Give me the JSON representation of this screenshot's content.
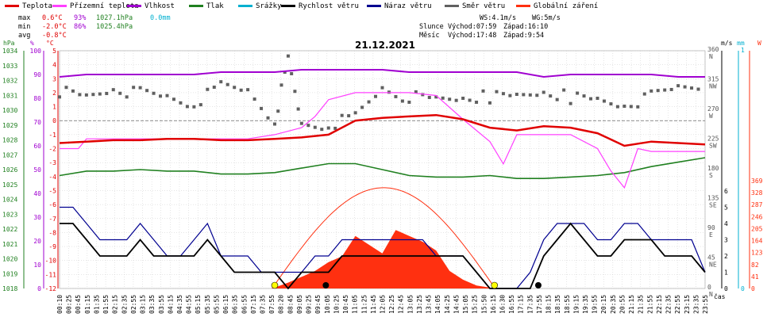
{
  "legend": [
    {
      "label": "Teplota",
      "color": "#e00000"
    },
    {
      "label": "Přízemní teplota",
      "color": "#ff40ff"
    },
    {
      "label": "Vlhkost",
      "color": "#a000d0"
    },
    {
      "label": "Tlak",
      "color": "#208020"
    },
    {
      "label": "Srážky",
      "color": "#00b0d0"
    },
    {
      "label": "Rychlost větru",
      "color": "#000000"
    },
    {
      "label": "Náraz větru",
      "color": "#000090"
    },
    {
      "label": "Směr větru",
      "color": "#606060"
    },
    {
      "label": "Globální záření",
      "color": "#ff3010"
    }
  ],
  "stats": {
    "max": {
      "label": "max",
      "temp": "0.6°C",
      "hum": "93%",
      "press": "1027.1hPa",
      "rain": "0.0mm"
    },
    "min": {
      "label": "min",
      "temp": "-2.0°C",
      "hum": "86%",
      "press": "1025.4hPa"
    },
    "avg": {
      "label": "avg",
      "temp": "-0.8°C"
    }
  },
  "info": {
    "ws": "WS:4.1m/s",
    "wg": "WG:5m/s",
    "sun_label": "Slunce",
    "sunrise": "Východ:07:59",
    "sunset": "Západ:16:10",
    "moon_label": "Měsíc",
    "moonrise": "Východ:17:48",
    "moonset": "Západ:9:54"
  },
  "date": "21.12.2021",
  "colors": {
    "temp": "#e00000",
    "ground": "#ff40ff",
    "hum": "#a000d0",
    "press": "#208020",
    "rain": "#00b0d0",
    "wind": "#000000",
    "gust": "#000090",
    "dir": "#606060",
    "rad": "#ff3010"
  },
  "chart_data": {
    "type": "line",
    "date": "21.12.2021",
    "x_label": "čas",
    "x_ticks": [
      "00:10",
      "00:25",
      "00:45",
      "01:15",
      "01:35",
      "01:55",
      "02:15",
      "02:35",
      "02:55",
      "03:15",
      "03:35",
      "03:55",
      "04:15",
      "04:35",
      "04:55",
      "05:15",
      "05:35",
      "05:55",
      "06:15",
      "06:35",
      "06:55",
      "07:15",
      "07:35",
      "07:55",
      "08:20",
      "08:45",
      "09:05",
      "09:25",
      "09:45",
      "10:05",
      "10:25",
      "10:45",
      "11:05",
      "11:25",
      "11:45",
      "12:05",
      "12:25",
      "12:45",
      "13:05",
      "13:25",
      "13:45",
      "14:05",
      "14:25",
      "14:45",
      "15:05",
      "15:25",
      "15:50",
      "16:15",
      "16:30",
      "16:55",
      "17:15",
      "17:35",
      "17:55",
      "18:15",
      "18:35",
      "18:55",
      "19:15",
      "19:35",
      "19:55",
      "20:15",
      "20:35",
      "20:55",
      "21:15",
      "21:35",
      "21:55",
      "22:15",
      "22:35",
      "22:55",
      "23:15",
      "23:35",
      "23:55"
    ],
    "axes": {
      "pressure": {
        "unit": "hPa",
        "ticks": [
          1034,
          1033,
          1032,
          1031,
          1030,
          1029,
          1028,
          1027,
          1026,
          1025,
          1024,
          1023,
          1022,
          1021,
          1020,
          1019,
          1018
        ],
        "range": [
          1018,
          1034
        ]
      },
      "humidity": {
        "unit": "%",
        "ticks": [
          100,
          90,
          80,
          70,
          60,
          50,
          40,
          30,
          20,
          10,
          0
        ],
        "range": [
          0,
          100
        ]
      },
      "temperature": {
        "unit": "°C",
        "ticks": [
          5,
          4,
          3,
          2,
          1,
          0,
          -1,
          -2,
          -3,
          -4,
          -5,
          -6,
          -7,
          -8,
          -9,
          -10,
          -11,
          -12
        ],
        "range": [
          -12,
          5
        ]
      },
      "wind_direction": {
        "ticks": [
          "360 N",
          "315 NW",
          "270 W",
          "225 SW",
          "180 S",
          "135 SE",
          "90 E",
          "45 NE",
          "0 N"
        ]
      },
      "wind_speed": {
        "unit": "m/s",
        "ticks": [
          6,
          5,
          4,
          3,
          2,
          1,
          0
        ],
        "range": [
          0,
          6
        ]
      },
      "rain": {
        "unit": "mm",
        "ticks": [
          1,
          0
        ],
        "range": [
          0,
          1
        ]
      },
      "radiation": {
        "unit": "W",
        "ticks": [
          369,
          328,
          287,
          246,
          205,
          164,
          123,
          82,
          41,
          0
        ],
        "range": [
          0,
          369
        ]
      }
    },
    "series": [
      {
        "name": "Teplota",
        "unit": "°C",
        "x": [
          0,
          1,
          2,
          3,
          4,
          5,
          6,
          7,
          8,
          9,
          10,
          11,
          12,
          13,
          14,
          15,
          16,
          17,
          18,
          19,
          20,
          21,
          22,
          23,
          24
        ],
        "values": [
          -1.6,
          -1.5,
          -1.4,
          -1.4,
          -1.3,
          -1.3,
          -1.4,
          -1.4,
          -1.3,
          -1.2,
          -1.0,
          0.0,
          0.2,
          0.3,
          0.4,
          0.1,
          -0.5,
          -0.7,
          -0.4,
          -0.5,
          -0.9,
          -1.8,
          -1.5,
          -1.6,
          -1.7
        ]
      },
      {
        "name": "Přízemní teplota",
        "unit": "°C",
        "x": [
          0,
          0.7,
          1,
          2,
          3,
          4,
          5,
          6,
          7,
          8,
          9,
          9.5,
          10,
          11,
          12,
          13,
          14,
          15,
          16,
          16.5,
          17,
          18,
          19,
          20,
          20.5,
          21,
          21.5,
          22,
          23,
          24
        ],
        "values": [
          -2.0,
          -2.0,
          -1.3,
          -1.3,
          -1.3,
          -1.3,
          -1.3,
          -1.3,
          -1.3,
          -1.0,
          -0.5,
          0.3,
          1.5,
          2.0,
          2.0,
          2.0,
          1.8,
          0.1,
          -1.5,
          -3.1,
          -1.0,
          -1.0,
          -1.0,
          -2.0,
          -3.6,
          -4.8,
          -2.0,
          -2.2,
          -2.2,
          -2.2
        ]
      },
      {
        "name": "Vlhkost",
        "unit": "%",
        "x": [
          0,
          1,
          2,
          3,
          4,
          5,
          6,
          7,
          8,
          9,
          10,
          11,
          12,
          13,
          14,
          15,
          16,
          17,
          18,
          19,
          20,
          21,
          22,
          23,
          24
        ],
        "values": [
          89,
          90,
          90,
          90,
          90,
          90,
          91,
          91,
          91,
          92,
          92,
          92,
          92,
          91,
          91,
          91,
          91,
          91,
          89,
          90,
          90,
          90,
          90,
          89,
          89
        ]
      },
      {
        "name": "Tlak",
        "unit": "hPa",
        "x": [
          0,
          1,
          2,
          3,
          4,
          5,
          6,
          7,
          8,
          9,
          10,
          11,
          12,
          13,
          14,
          15,
          16,
          17,
          18,
          19,
          20,
          21,
          22,
          23,
          24
        ],
        "values": [
          1025.6,
          1025.9,
          1025.9,
          1026.0,
          1025.9,
          1025.9,
          1025.7,
          1025.7,
          1025.8,
          1026.1,
          1026.4,
          1026.4,
          1026.0,
          1025.6,
          1025.5,
          1025.5,
          1025.6,
          1025.4,
          1025.4,
          1025.5,
          1025.6,
          1025.8,
          1026.2,
          1026.5,
          1026.8
        ]
      },
      {
        "name": "Rychlost větru",
        "unit": "m/s",
        "x": [
          0,
          0.5,
          1,
          1.5,
          2,
          2.5,
          3,
          3.5,
          4,
          4.5,
          5,
          5.5,
          6,
          6.5,
          7,
          7.5,
          8,
          8.5,
          9,
          9.5,
          10,
          10.5,
          11,
          11.5,
          12,
          12.5,
          13,
          13.5,
          14,
          14.5,
          15,
          15.5,
          16,
          16.5,
          17,
          17.5,
          18,
          18.5,
          19,
          19.5,
          20,
          20.5,
          21,
          21.5,
          22,
          22.5,
          23,
          23.5,
          24
        ],
        "values": [
          4,
          4,
          3,
          2,
          2,
          2,
          3,
          2,
          2,
          2,
          2,
          3,
          2,
          1,
          1,
          1,
          1,
          0,
          1,
          1,
          1,
          2,
          2,
          2,
          2,
          2,
          2,
          2,
          2,
          2,
          2,
          1,
          0,
          0,
          0,
          0,
          2,
          3,
          4,
          3,
          2,
          2,
          3,
          3,
          3,
          2,
          2,
          2,
          1
        ]
      },
      {
        "name": "Náraz větru",
        "unit": "m/s",
        "x": [
          0,
          0.5,
          1,
          1.5,
          2,
          2.5,
          3,
          3.5,
          4,
          4.5,
          5,
          5.5,
          6,
          6.5,
          7,
          7.5,
          8,
          8.5,
          9,
          9.5,
          10,
          10.5,
          11,
          11.5,
          12,
          12.5,
          13,
          13.5,
          14,
          14.5,
          15,
          15.5,
          16,
          16.5,
          17,
          17.5,
          18,
          18.5,
          19,
          19.5,
          20,
          20.5,
          21,
          21.5,
          22,
          22.5,
          23,
          23.5,
          24
        ],
        "values": [
          5,
          5,
          4,
          3,
          3,
          3,
          4,
          3,
          2,
          2,
          3,
          4,
          2,
          2,
          2,
          1,
          1,
          1,
          1,
          2,
          2,
          3,
          3,
          3,
          3,
          3,
          3,
          3,
          2,
          2,
          2,
          1,
          0,
          0,
          0,
          1,
          3,
          4,
          4,
          4,
          3,
          3,
          4,
          4,
          3,
          3,
          3,
          3,
          1
        ]
      },
      {
        "name": "Globální záření",
        "unit": "W",
        "x": [
          7.9,
          8.5,
          9,
          9.5,
          10,
          10.5,
          11,
          11.5,
          12,
          12.5,
          13,
          13.5,
          14,
          14.5,
          15,
          15.5,
          16.2
        ],
        "values": [
          0,
          20,
          40,
          60,
          90,
          110,
          180,
          150,
          120,
          200,
          180,
          160,
          130,
          60,
          30,
          10,
          0
        ]
      },
      {
        "name": "Směr větru",
        "unit": "°",
        "x": [
          0,
          1,
          2,
          3,
          4,
          5,
          6,
          7,
          8,
          8.5,
          9,
          10,
          11,
          12,
          13,
          14,
          15,
          16,
          17,
          18,
          19,
          20,
          21,
          22,
          23,
          24
        ],
        "values": [
          300,
          290,
          305,
          295,
          290,
          280,
          305,
          300,
          255,
          345,
          250,
          250,
          260,
          305,
          290,
          285,
          290,
          290,
          290,
          300,
          290,
          285,
          280,
          290,
          305,
          310
        ]
      }
    ],
    "ylim_temp": [
      -12,
      5
    ]
  }
}
